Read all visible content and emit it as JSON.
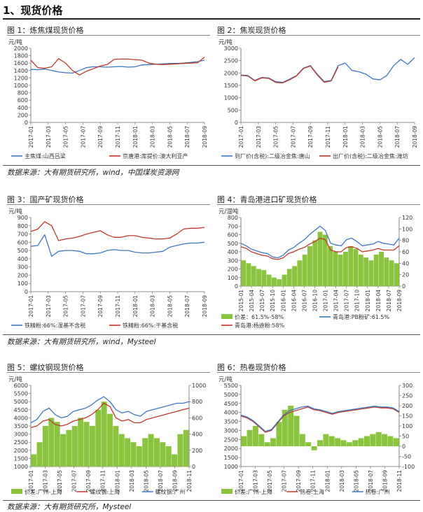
{
  "section_title": "1、现货价格",
  "sources": [
    "数据来源：大有期货研究所，wind，中国煤炭资源网",
    "数据来源：大有期货研究所，wind，Mysteel",
    "数据来源：大有期货研究所，Mysteel"
  ],
  "colors": {
    "blue": "#3c78c0",
    "red": "#c0392b",
    "green": "#8ac43f",
    "axis": "#666666",
    "grid": "#d9d9d9"
  },
  "chart_data": [
    {
      "id": "fig1",
      "type": "line",
      "title": "图 1：炼焦煤现货价格",
      "ylabel": "元/吨",
      "ylim": [
        0,
        2000
      ],
      "yticks": [
        0,
        200,
        400,
        600,
        800,
        1000,
        1200,
        1400,
        1600,
        1800,
        2000
      ],
      "x_ticks": [
        "2017-01",
        "2017-03",
        "2017-05",
        "2017-07",
        "2017-09",
        "2017-11",
        "2018-01",
        "2018-03",
        "2018-05",
        "2018-07",
        "2018-09"
      ],
      "series": [
        {
          "name": "主焦煤:山西吕梁",
          "color": "#3c78c0",
          "values": [
            1430,
            1420,
            1440,
            1400,
            1360,
            1340,
            1330,
            1400,
            1480,
            1500,
            1500,
            1490,
            1500,
            1510,
            1490,
            1500,
            1550,
            1560,
            1570,
            1580,
            1590,
            1590,
            1600,
            1620,
            1640,
            1680
          ]
        },
        {
          "name": "京唐港:库提价:澳大利亚产",
          "color": "#c0392b",
          "values": [
            1680,
            1480,
            1460,
            1500,
            1720,
            1600,
            1400,
            1280,
            1380,
            1450,
            1520,
            1560,
            1700,
            1710,
            1710,
            1690,
            1680,
            1600,
            1570,
            1560,
            1570,
            1580,
            1590,
            1600,
            1610,
            1760
          ]
        }
      ]
    },
    {
      "id": "fig2",
      "type": "line",
      "title": "图 2：焦炭现货价格",
      "ylabel": "元/吨",
      "ylim": [
        0,
        3000
      ],
      "yticks": [
        0,
        500,
        1000,
        1500,
        2000,
        2500,
        3000
      ],
      "x_ticks": [
        "2017-01",
        "2017-03",
        "2017-05",
        "2017-07",
        "2017-09",
        "2017-11",
        "2018-01",
        "2018-03",
        "2018-05",
        "2018-07",
        "2018-09"
      ],
      "series": [
        {
          "name": "到厂价(含税):二级冶金焦:唐山",
          "color": "#3c78c0",
          "values": [
            1920,
            1900,
            1700,
            1820,
            1800,
            1650,
            1620,
            1750,
            1900,
            2200,
            2300,
            1950,
            1650,
            1700,
            2300,
            2400,
            2100,
            2050,
            1950,
            1760,
            1720,
            1900,
            2300,
            2550,
            2350,
            2620
          ]
        },
        {
          "name": "出厂价(含税):二级冶金焦:潍坊",
          "color": "#c0392b",
          "values": [
            1900,
            1880,
            1680,
            1800,
            1780,
            1620,
            1600,
            1720,
            1880,
            2180,
            2280,
            1920,
            1620,
            1680,
            2250,
            null,
            null,
            null,
            null,
            null,
            null,
            null,
            null,
            null,
            null,
            null
          ]
        }
      ]
    },
    {
      "id": "fig3",
      "type": "line",
      "title": "图 3：国产矿现货价格",
      "ylabel": "元/吨",
      "ylim": [
        0,
        900
      ],
      "yticks": [
        0,
        100,
        200,
        300,
        400,
        500,
        600,
        700,
        800,
        900
      ],
      "x_ticks": [
        "2017-01",
        "2017-03",
        "2017-05",
        "2017-07",
        "2017-09",
        "2017-11",
        "2018-01",
        "2018-03",
        "2018-05",
        "2018-07",
        "2018-09"
      ],
      "series": [
        {
          "name": "铁精粉:66%:湿基不含税",
          "color": "#3c78c0",
          "values": [
            550,
            560,
            690,
            430,
            490,
            500,
            500,
            490,
            460,
            460,
            470,
            500,
            510,
            500,
            500,
            480,
            470,
            470,
            480,
            490,
            540,
            560,
            580,
            590,
            590,
            600
          ]
        },
        {
          "name": "铁精粉:66%:干基含税",
          "color": "#c0392b",
          "values": [
            730,
            760,
            850,
            800,
            620,
            640,
            650,
            670,
            700,
            720,
            740,
            690,
            660,
            660,
            680,
            680,
            660,
            650,
            640,
            640,
            650,
            700,
            760,
            770,
            770,
            780
          ]
        }
      ]
    },
    {
      "id": "fig4",
      "type": "line",
      "title": "图 4：青岛港进口矿现货价格",
      "ylabel": "元/湿吨",
      "ylim": [
        0,
        800
      ],
      "yticks": [
        0,
        100,
        200,
        300,
        400,
        500,
        600,
        700,
        800
      ],
      "y2lim": [
        0,
        120
      ],
      "y2ticks": [
        0,
        20,
        40,
        60,
        80,
        100,
        120
      ],
      "x_ticks": [
        "2015-01",
        "2015-04",
        "2015-07",
        "2015-10",
        "2016-01",
        "2016-04",
        "2016-07",
        "2016-10",
        "2017-01",
        "2017-04",
        "2017-07",
        "2017-10",
        "2018-01",
        "2018-04",
        "2018-07",
        "2018-09"
      ],
      "bars": {
        "name": "价差：61.5%-58%",
        "color": "#8ac43f",
        "values": [
          45,
          40,
          35,
          30,
          28,
          20,
          15,
          12,
          20,
          30,
          35,
          45,
          55,
          70,
          80,
          95,
          90,
          70,
          60,
          55,
          60,
          70,
          65,
          55,
          50,
          45,
          55,
          60,
          50,
          45,
          40
        ]
      },
      "series": [
        {
          "name": "青岛港:PB粉矿:61.5%",
          "color": "#3c78c0",
          "values": [
            500,
            470,
            430,
            410,
            390,
            380,
            340,
            330,
            360,
            420,
            450,
            500,
            540,
            600,
            650,
            700,
            650,
            500,
            480,
            470,
            540,
            560,
            520,
            470,
            480,
            490,
            520,
            500,
            490,
            480,
            560
          ]
        },
        {
          "name": "青岛港:杨迪粉:58%",
          "color": "#c0392b",
          "values": [
            460,
            440,
            400,
            380,
            360,
            350,
            320,
            310,
            330,
            380,
            400,
            430,
            450,
            490,
            520,
            560,
            540,
            420,
            400,
            400,
            450,
            460,
            440,
            400,
            410,
            420,
            440,
            420,
            420,
            420,
            470
          ]
        }
      ]
    },
    {
      "id": "fig5",
      "type": "line",
      "title": "图 5：螺纹钢现货价格",
      "ylabel": "元/吨",
      "ylim": [
        1000,
        6000
      ],
      "yticks": [
        1000,
        1500,
        2000,
        2500,
        3000,
        3500,
        4000,
        4500,
        5000,
        5500,
        6000
      ],
      "y2lim": [
        0,
        1000
      ],
      "y2ticks": [
        0,
        200,
        400,
        600,
        800,
        1000
      ],
      "x_ticks": [
        "2017-01",
        "2017-03",
        "2017-05",
        "2017-07",
        "2017-09",
        "2017-11",
        "2018-01",
        "2018-03",
        "2018-05",
        "2018-07",
        "2018-09",
        "2018-11"
      ],
      "bars": {
        "name": "价差:广州-上海",
        "color": "#8ac43f",
        "values": [
          150,
          300,
          500,
          600,
          550,
          400,
          450,
          500,
          600,
          550,
          500,
          700,
          800,
          650,
          500,
          400,
          350,
          300,
          250,
          350,
          400,
          350,
          300,
          250,
          150,
          400,
          450
        ]
      },
      "series": [
        {
          "name": "螺纹钢:上海",
          "color": "#c0392b",
          "values": [
            3400,
            3500,
            3800,
            3900,
            3600,
            3500,
            3600,
            3800,
            3900,
            4000,
            4200,
            4500,
            4900,
            4700,
            4000,
            3800,
            3900,
            3700,
            3700,
            3900,
            4000,
            4100,
            4200,
            4300,
            4400,
            4500,
            4600
          ]
        },
        {
          "name": "螺纹钢:广州",
          "color": "#3c78c0",
          "values": [
            3700,
            3900,
            4400,
            4600,
            4200,
            4000,
            4100,
            4400,
            4500,
            4600,
            4800,
            5100,
            5300,
            5000,
            4500,
            4300,
            4400,
            4200,
            4100,
            4400,
            4500,
            4600,
            4700,
            4800,
            4900,
            4900,
            5000
          ]
        }
      ]
    },
    {
      "id": "fig6",
      "type": "line",
      "title": "图 6：热卷现货价格",
      "ylabel": "元/吨",
      "ylim": [
        1000,
        5500
      ],
      "yticks": [
        1000,
        1500,
        2000,
        2500,
        3000,
        3500,
        4000,
        4500,
        5000,
        5500
      ],
      "y2lim": [
        -100,
        300
      ],
      "y2ticks": [
        -100,
        -50,
        0,
        50,
        100,
        150,
        200,
        250,
        300
      ],
      "x_ticks": [
        "2017-01",
        "2017-03",
        "2017-05",
        "2017-07",
        "2017-09",
        "2017-11",
        "2018-01",
        "2018-03",
        "2018-05",
        "2018-07",
        "2018-09",
        "2018-11"
      ],
      "bars": {
        "name": "价差:广州-上海",
        "color": "#8ac43f",
        "values": [
          50,
          80,
          100,
          60,
          20,
          40,
          120,
          180,
          200,
          150,
          60,
          20,
          -20,
          30,
          60,
          50,
          40,
          30,
          20,
          30,
          40,
          50,
          60,
          70,
          60,
          50,
          40
        ]
      },
      "series": [
        {
          "name": "热卷:上海",
          "color": "#c0392b",
          "values": [
            3800,
            3700,
            3500,
            3200,
            2900,
            3000,
            3400,
            3800,
            4000,
            4100,
            4200,
            4300,
            4150,
            4100,
            4000,
            3900,
            4000,
            4050,
            4100,
            4150,
            4200,
            4250,
            4300,
            4250,
            4250,
            4200,
            4000
          ]
        },
        {
          "name": "热卷:广州",
          "color": "#3c78c0",
          "values": [
            3850,
            3750,
            3550,
            3250,
            2950,
            3050,
            3450,
            3850,
            4100,
            4200,
            4300,
            4350,
            4200,
            4150,
            4050,
            3950,
            4050,
            4100,
            4150,
            4200,
            4250,
            4300,
            4350,
            4300,
            4300,
            4250,
            4050
          ]
        }
      ]
    }
  ]
}
